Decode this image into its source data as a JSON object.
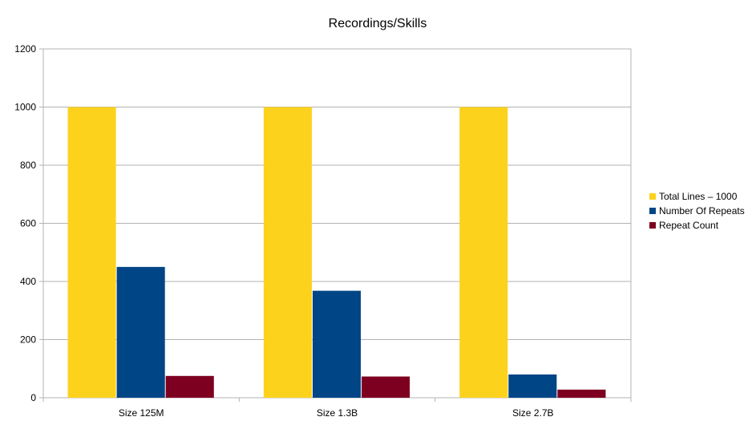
{
  "chart_data": {
    "type": "bar",
    "title": "Recordings/Skills",
    "xlabel": "",
    "ylabel": "",
    "categories": [
      "Size 125M",
      "Size 1.3B",
      "Size 2.7B"
    ],
    "series": [
      {
        "name": "Total Lines – 1000",
        "color": "#fdd21d",
        "values": [
          1000,
          1000,
          1000
        ]
      },
      {
        "name": "Number Of Repeats",
        "color": "#004586",
        "values": [
          450,
          368,
          80
        ]
      },
      {
        "name": "Repeat Count",
        "color": "#7e0021",
        "values": [
          75,
          73,
          28
        ]
      }
    ],
    "ylim": [
      0,
      1200
    ],
    "yticks": [
      0,
      200,
      400,
      600,
      800,
      1000,
      1200
    ],
    "grid": true,
    "legend_position": "right"
  }
}
